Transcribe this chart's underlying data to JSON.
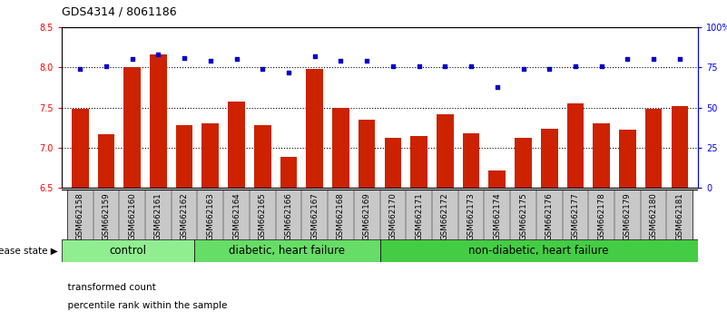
{
  "title": "GDS4314 / 8061186",
  "samples": [
    "GSM662158",
    "GSM662159",
    "GSM662160",
    "GSM662161",
    "GSM662162",
    "GSM662163",
    "GSM662164",
    "GSM662165",
    "GSM662166",
    "GSM662167",
    "GSM662168",
    "GSM662169",
    "GSM662170",
    "GSM662171",
    "GSM662172",
    "GSM662173",
    "GSM662174",
    "GSM662175",
    "GSM662176",
    "GSM662177",
    "GSM662178",
    "GSM662179",
    "GSM662180",
    "GSM662181"
  ],
  "bar_values": [
    7.48,
    7.17,
    8.0,
    8.16,
    7.28,
    7.3,
    7.58,
    7.28,
    6.88,
    7.98,
    7.5,
    7.35,
    7.12,
    7.15,
    7.42,
    7.18,
    6.72,
    7.12,
    7.23,
    7.55,
    7.3,
    7.22,
    7.48,
    7.52
  ],
  "percentile_values": [
    74,
    76,
    80,
    83,
    81,
    79,
    80,
    74,
    72,
    82,
    79,
    79,
    76,
    76,
    76,
    76,
    63,
    74,
    74,
    76,
    76,
    80,
    80,
    80
  ],
  "ylim_left": [
    6.5,
    8.5
  ],
  "ylim_right": [
    0,
    100
  ],
  "yticks_left": [
    6.5,
    7.0,
    7.5,
    8.0,
    8.5
  ],
  "yticks_right": [
    0,
    25,
    50,
    75,
    100
  ],
  "ytick_labels_right": [
    "0",
    "25",
    "50",
    "75",
    "100%"
  ],
  "groups": [
    {
      "label": "control",
      "start": 0,
      "end": 5
    },
    {
      "label": "diabetic, heart failure",
      "start": 5,
      "end": 12
    },
    {
      "label": "non-diabetic, heart failure",
      "start": 12,
      "end": 24
    }
  ],
  "group_colors": [
    "#90EE90",
    "#66DD66",
    "#44CC44"
  ],
  "bar_color": "#CC2200",
  "dot_color": "#0000CC",
  "tick_bg_color": "#C8C8C8",
  "legend_bar_label": "transformed count",
  "legend_dot_label": "percentile rank within the sample",
  "disease_state_label": "disease state",
  "hlines": [
    7.0,
    7.5,
    8.0
  ],
  "title_fontsize": 9,
  "tick_fontsize": 7,
  "group_label_fontsize": 8.5
}
